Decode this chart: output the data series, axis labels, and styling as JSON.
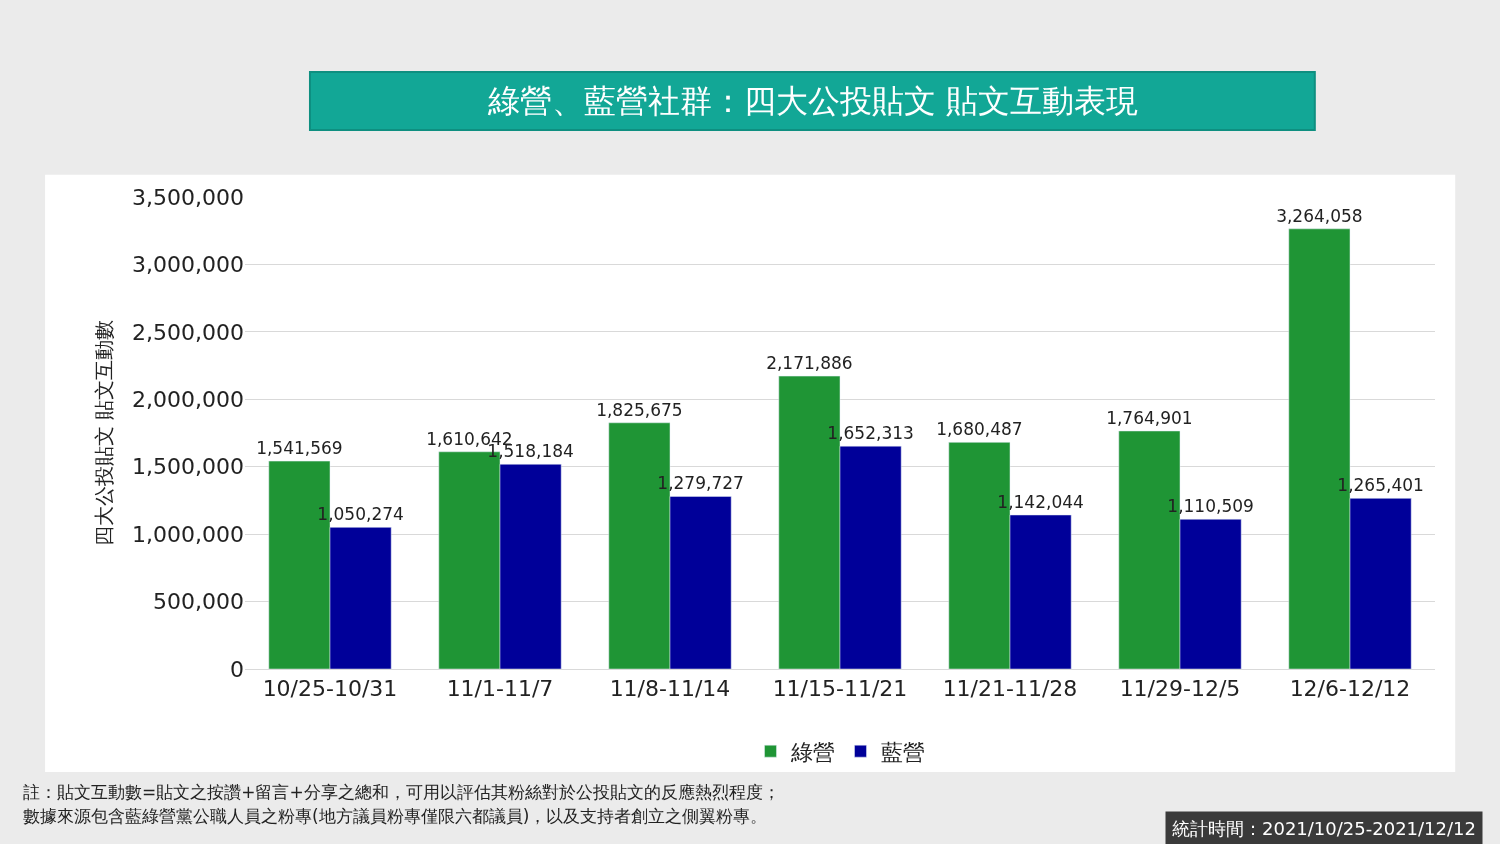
{
  "chart_data": {
    "type": "bar",
    "title": "綠營、藍營社群：四大公投貼文 貼文互動表現",
    "ylabel": "四大公投貼文 貼文互動數",
    "categories": [
      "10/25-10/31",
      "11/1-11/7",
      "11/8-11/14",
      "11/15-11/21",
      "11/21-11/28",
      "11/29-12/5",
      "12/6-12/12"
    ],
    "series": [
      {
        "name": "綠營",
        "color": "#1f9535",
        "values": [
          1541569,
          1610642,
          1825675,
          2171886,
          1680487,
          1764901,
          3264058
        ],
        "value_labels": [
          "1,541,569",
          "1,610,642",
          "1,825,675",
          "2,171,886",
          "1,680,487",
          "1,764,901",
          "3,264,058"
        ]
      },
      {
        "name": "藍營",
        "color": "#000099",
        "values": [
          1050274,
          1518184,
          1279727,
          1652313,
          1142044,
          1110509,
          1265401
        ],
        "value_labels": [
          "1,050,274",
          "1,518,184",
          "1,279,727",
          "1,652,313",
          "1,142,044",
          "1,110,509",
          "1,265,401"
        ]
      }
    ],
    "ylim": [
      0,
      3500000
    ],
    "yticks": [
      {
        "value": 0,
        "label": "0"
      },
      {
        "value": 500000,
        "label": "500,000"
      },
      {
        "value": 1000000,
        "label": "1,000,000"
      },
      {
        "value": 1500000,
        "label": "1,500,000"
      },
      {
        "value": 2000000,
        "label": "2,000,000"
      },
      {
        "value": 2500000,
        "label": "2,500,000"
      },
      {
        "value": 3000000,
        "label": "3,000,000"
      },
      {
        "value": 3500000,
        "label": "3,500,000"
      }
    ],
    "grid": "y",
    "legend": "bottom",
    "annotations": [
      "註：貼文互動數=貼文之按讚+留言+分享之總和，可用以評估其粉絲對於公投貼文的反應熱烈程度；",
      "數據來源包含藍綠營黨公職人員之粉專(地方議員粉專僅限六都議員)，以及支持者創立之側翼粉專。",
      "統計時間：2021/10/25-2021/12/12"
    ]
  }
}
